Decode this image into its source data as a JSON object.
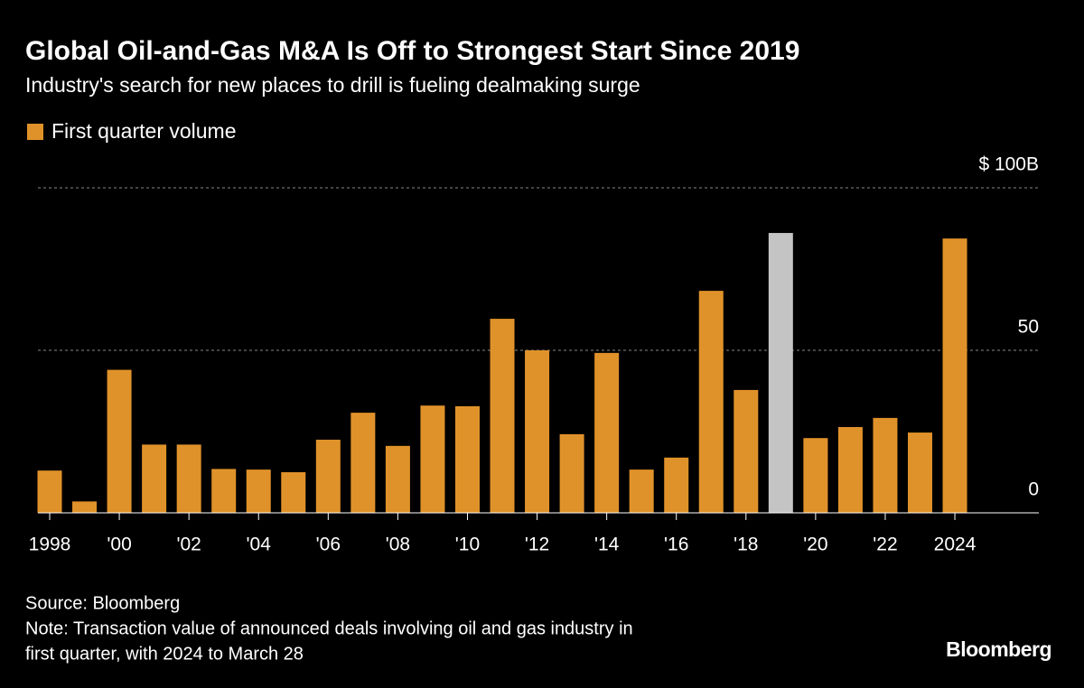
{
  "chart_data": {
    "type": "bar",
    "title": "Global Oil-and-Gas M&A Is Off to Strongest Start Since 2019",
    "subtitle": "Industry's search for new places to drill is fueling dealmaking surge",
    "categories": [
      "1998",
      null,
      "'00",
      null,
      "'02",
      null,
      "'04",
      null,
      "'06",
      null,
      "'08",
      null,
      "'10",
      null,
      "'12",
      null,
      "'14",
      null,
      "'16",
      null,
      "'18",
      null,
      "'20",
      null,
      "'22",
      null,
      "2024"
    ],
    "series": [
      {
        "name": "First quarter volume",
        "color": "#e0922a",
        "values": [
          13,
          3.5,
          44,
          21,
          21,
          13.5,
          13.3,
          12.5,
          22.5,
          30.8,
          20.6,
          33,
          32.8,
          59.7,
          50,
          24.2,
          49.2,
          13.3,
          17,
          68.3,
          37.8,
          86.1,
          23,
          26.4,
          29.2,
          24.7,
          84.4
        ],
        "bar_colors": [
          "#e0922a",
          "#e0922a",
          "#e0922a",
          "#e0922a",
          "#e0922a",
          "#e0922a",
          "#e0922a",
          "#e0922a",
          "#e0922a",
          "#e0922a",
          "#e0922a",
          "#e0922a",
          "#e0922a",
          "#e0922a",
          "#e0922a",
          "#e0922a",
          "#e0922a",
          "#e0922a",
          "#e0922a",
          "#e0922a",
          "#e0922a",
          "#c4c4c4",
          "#e0922a",
          "#e0922a",
          "#e0922a",
          "#e0922a",
          "#e0922a"
        ]
      }
    ],
    "ylim": [
      0,
      100
    ],
    "yticks": [
      0,
      50,
      {
        "value": 100,
        "label": "$ 100B"
      }
    ],
    "grid": true,
    "source": "Source: Bloomberg",
    "note": [
      "Note: Transaction value of announced deals involving oil and gas industry in",
      "first quarter, with 2024 to March 28"
    ],
    "brand": "Bloomberg"
  }
}
